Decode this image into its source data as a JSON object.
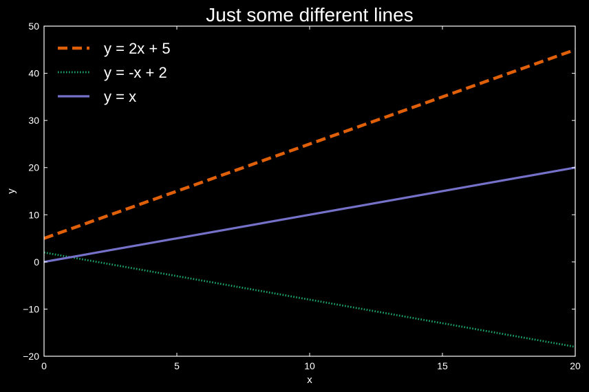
{
  "chart_data": {
    "type": "line",
    "title": "Just some different lines",
    "xlabel": "x",
    "ylabel": "y",
    "xlim": [
      0,
      20
    ],
    "ylim": [
      -20,
      50
    ],
    "x_ticks": [
      0,
      5,
      10,
      15,
      20
    ],
    "y_ticks": [
      -20,
      -10,
      0,
      10,
      20,
      30,
      40,
      50
    ],
    "x_tick_labels": [
      "0",
      "5",
      "10",
      "15",
      "20"
    ],
    "y_tick_labels": [
      "−20",
      "−10",
      "0",
      "10",
      "20",
      "30",
      "40",
      "50"
    ],
    "grid": false,
    "legend_position": "top-left",
    "background_color": "#000000",
    "axes_color": "#ffffff",
    "series": [
      {
        "name": "y = 2x + 5",
        "style": "dashed",
        "color": "#e0600a",
        "x": [
          0,
          20
        ],
        "y": [
          5,
          45
        ]
      },
      {
        "name": "y = -x + 2",
        "style": "dotted",
        "color": "#1aa86b",
        "x": [
          0,
          20
        ],
        "y": [
          2,
          -18
        ]
      },
      {
        "name": "y = x",
        "style": "solid",
        "color": "#7570c8",
        "x": [
          0,
          20
        ],
        "y": [
          0,
          20
        ]
      }
    ]
  }
}
